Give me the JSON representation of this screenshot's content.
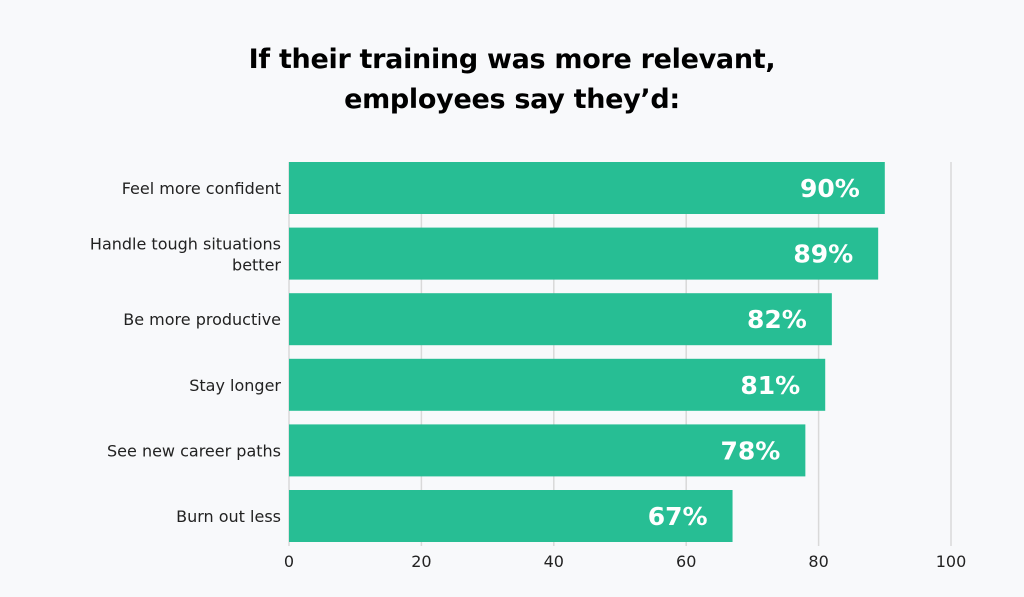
{
  "chart_data": {
    "type": "bar",
    "orientation": "horizontal",
    "title": [
      "If their training was more relevant,",
      "employees say they’d:"
    ],
    "categories": [
      [
        "Feel more confident"
      ],
      [
        "Handle tough situations",
        "better"
      ],
      [
        "Be more productive"
      ],
      [
        "Stay longer"
      ],
      [
        "See new career paths"
      ],
      [
        "Burn out less"
      ]
    ],
    "values": [
      90,
      89,
      82,
      81,
      78,
      67
    ],
    "data_labels": [
      "90%",
      "89%",
      "82%",
      "81%",
      "78%",
      "67%"
    ],
    "xlim": [
      0,
      100
    ],
    "xticks": [
      0,
      20,
      40,
      60,
      80,
      100
    ],
    "xtick_labels": [
      "0",
      "20",
      "40",
      "60",
      "80",
      "100"
    ],
    "xlabel": "",
    "ylabel": "",
    "grid": "vertical",
    "bar_color": "#27be94",
    "label_color": "#ffffff"
  }
}
